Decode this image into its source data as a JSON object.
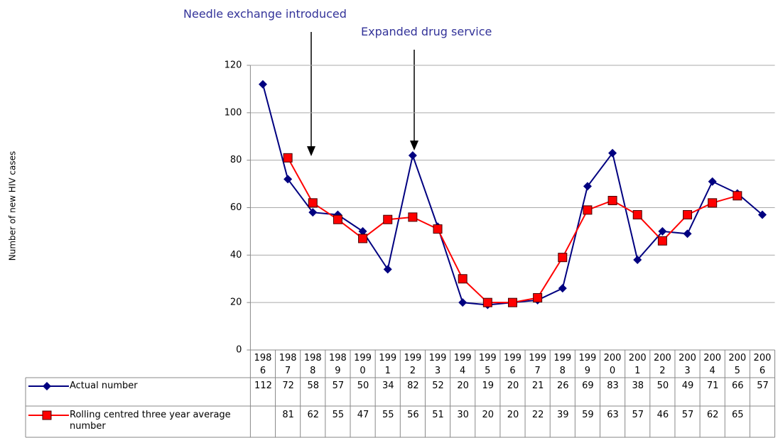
{
  "chart_data": {
    "type": "line",
    "y_label": "Number of new HIV cases",
    "annotations": [
      "Needle exchange introduced",
      "Expanded drug service"
    ],
    "categories": [
      "1986",
      "1987",
      "1988",
      "1989",
      "1990",
      "1991",
      "1992",
      "1993",
      "1994",
      "1995",
      "1996",
      "1997",
      "1998",
      "1999",
      "2000",
      "2001",
      "2002",
      "2003",
      "2004",
      "2005",
      "2006"
    ],
    "series": [
      {
        "name": "Actual number",
        "color": "#000080",
        "marker": "diamond",
        "values": [
          112,
          72,
          58,
          57,
          50,
          34,
          82,
          52,
          20,
          19,
          20,
          21,
          26,
          69,
          83,
          38,
          50,
          49,
          71,
          66,
          57
        ]
      },
      {
        "name": "Rolling centred three year average number",
        "color": "#ff0000",
        "marker": "square",
        "values": [
          null,
          81,
          62,
          55,
          47,
          55,
          56,
          51,
          30,
          20,
          20,
          22,
          39,
          59,
          63,
          57,
          46,
          57,
          62,
          65,
          null
        ]
      }
    ],
    "ylim": [
      0,
      120
    ],
    "yticks": [
      0,
      20,
      40,
      60,
      80,
      100,
      120
    ],
    "grid": true
  }
}
